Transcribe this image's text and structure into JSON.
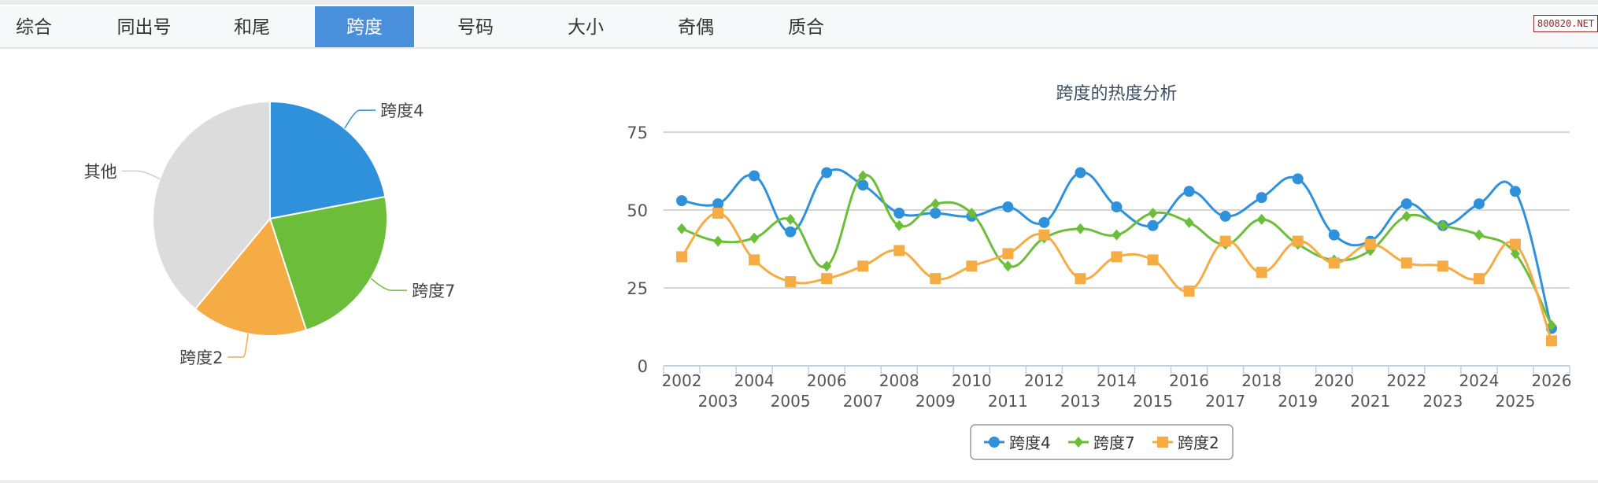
{
  "tabs": [
    {
      "label": "综合",
      "active": false
    },
    {
      "label": "同出号",
      "active": false
    },
    {
      "label": "和尾",
      "active": false
    },
    {
      "label": "跨度",
      "active": true
    },
    {
      "label": "号码",
      "active": false
    },
    {
      "label": "大小",
      "active": false
    },
    {
      "label": "奇偶",
      "active": false
    },
    {
      "label": "质合",
      "active": false
    }
  ],
  "logo": "800820.NET",
  "colors": {
    "blue": "#2f91dc",
    "green": "#6cbe3a",
    "orange": "#f5ac45",
    "gray": "#dcdcdc",
    "active_tab": "#4a8fd9"
  },
  "chart_data": [
    {
      "type": "pie",
      "slices": [
        {
          "label": "跨度4",
          "value": 22,
          "color": "#2f91dc"
        },
        {
          "label": "跨度7",
          "value": 23,
          "color": "#6cbe3a"
        },
        {
          "label": "跨度2",
          "value": 16,
          "color": "#f5ac45"
        },
        {
          "label": "其他",
          "value": 39,
          "color": "#dcdcdc"
        }
      ]
    },
    {
      "type": "line",
      "title": "跨度的热度分析",
      "x": [
        "2002",
        "2003",
        "2004",
        "2005",
        "2006",
        "2007",
        "2008",
        "2009",
        "2010",
        "2011",
        "2012",
        "2013",
        "2014",
        "2015",
        "2016",
        "2017",
        "2018",
        "2019",
        "2020",
        "2021",
        "2022",
        "2023",
        "2024",
        "2025",
        "2026"
      ],
      "yticks": [
        "0",
        "25",
        "50",
        "75"
      ],
      "ylim": [
        0,
        75
      ],
      "grid": true,
      "legend": "bottom-center",
      "series": [
        {
          "name": "跨度4",
          "color": "#2f91dc",
          "marker": "circle",
          "values": [
            53,
            52,
            61,
            43,
            62,
            58,
            49,
            49,
            48,
            51,
            46,
            62,
            51,
            45,
            56,
            48,
            54,
            60,
            42,
            40,
            52,
            45,
            52,
            56,
            12
          ]
        },
        {
          "name": "跨度7",
          "color": "#6cbe3a",
          "marker": "diamond",
          "values": [
            44,
            40,
            41,
            47,
            32,
            61,
            45,
            52,
            49,
            32,
            41,
            44,
            42,
            49,
            46,
            39,
            47,
            39,
            34,
            37,
            48,
            45,
            42,
            36,
            13
          ]
        },
        {
          "name": "跨度2",
          "color": "#f5ac45",
          "marker": "square",
          "values": [
            35,
            49,
            34,
            27,
            28,
            32,
            37,
            28,
            32,
            36,
            42,
            28,
            35,
            34,
            24,
            40,
            30,
            40,
            33,
            39,
            33,
            32,
            28,
            39,
            8
          ]
        }
      ]
    }
  ]
}
